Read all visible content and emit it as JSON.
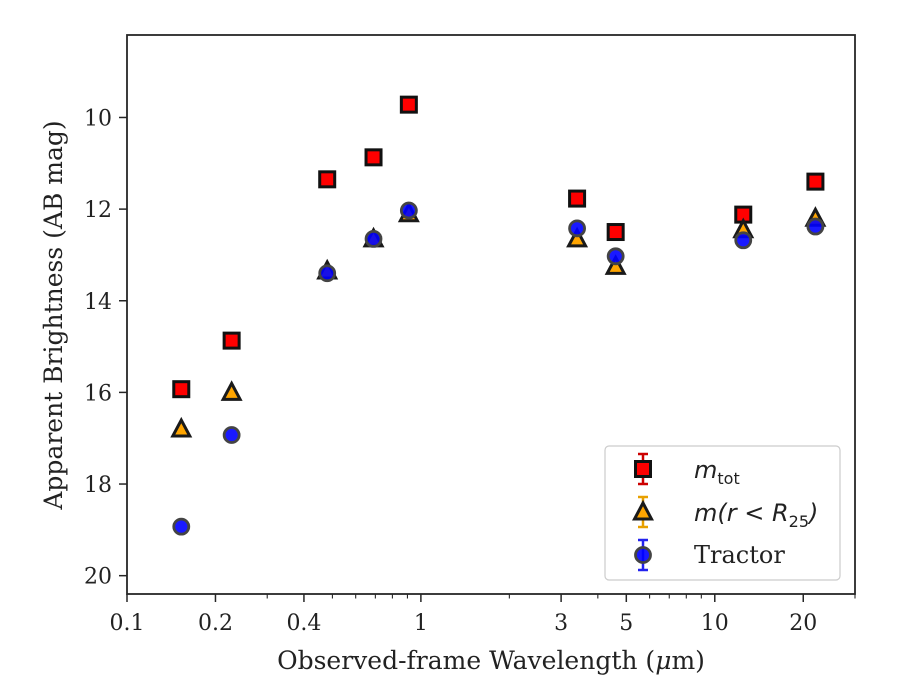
{
  "chart_data": {
    "type": "scatter",
    "xscale": "log",
    "yaxis_inverted": true,
    "xlim": [
      0.1,
      30
    ],
    "ylim": [
      20.4,
      8.2
    ],
    "xlabel_main": "Observed-frame Wavelength (",
    "xlabel_mu": "μ",
    "xlabel_tail": "m)",
    "ylabel": "Apparent Brightness (AB mag)",
    "xticks": [
      {
        "value": 0.1,
        "label": "0.1"
      },
      {
        "value": 0.2,
        "label": "0.2"
      },
      {
        "value": 0.4,
        "label": "0.4"
      },
      {
        "value": 1,
        "label": "1"
      },
      {
        "value": 3,
        "label": "3"
      },
      {
        "value": 5,
        "label": "5"
      },
      {
        "value": 10,
        "label": "10"
      },
      {
        "value": 20,
        "label": "20"
      }
    ],
    "yticks": [
      {
        "value": 10,
        "label": "10"
      },
      {
        "value": 12,
        "label": "12"
      },
      {
        "value": 14,
        "label": "14"
      },
      {
        "value": 16,
        "label": "16"
      },
      {
        "value": 18,
        "label": "18"
      },
      {
        "value": 20,
        "label": "20"
      }
    ],
    "series": [
      {
        "key": "mtot",
        "legend_main": "m",
        "legend_sub": "tot",
        "legend_tail": "",
        "marker": "square",
        "color": "#ff0000",
        "errcolor": "#cc0000",
        "points": [
          {
            "x": 0.153,
            "y": 15.93
          },
          {
            "x": 0.227,
            "y": 14.87
          },
          {
            "x": 0.48,
            "y": 11.35
          },
          {
            "x": 0.69,
            "y": 10.87
          },
          {
            "x": 0.91,
            "y": 9.72
          },
          {
            "x": 3.4,
            "y": 11.77
          },
          {
            "x": 4.6,
            "y": 12.5
          },
          {
            "x": 12.5,
            "y": 12.12
          },
          {
            "x": 22.0,
            "y": 11.4
          }
        ]
      },
      {
        "key": "mr25",
        "legend_main": "m(r < R",
        "legend_sub": "25",
        "legend_tail": ")",
        "marker": "triangle",
        "color": "#ffa500",
        "errcolor": "#e8a000",
        "points": [
          {
            "x": 0.153,
            "y": 16.8
          },
          {
            "x": 0.227,
            "y": 16.0
          },
          {
            "x": 0.48,
            "y": 13.35
          },
          {
            "x": 0.69,
            "y": 12.65
          },
          {
            "x": 0.91,
            "y": 12.1
          },
          {
            "x": 3.4,
            "y": 12.65
          },
          {
            "x": 4.6,
            "y": 13.25
          },
          {
            "x": 12.5,
            "y": 12.45
          },
          {
            "x": 22.0,
            "y": 12.2
          }
        ]
      },
      {
        "key": "tractor",
        "legend_main": "Tractor",
        "legend_sub": "",
        "legend_tail": "",
        "marker": "circle",
        "color": "#0000ff",
        "errcolor": "#2222ee",
        "points": [
          {
            "x": 0.153,
            "y": 18.93
          },
          {
            "x": 0.227,
            "y": 16.93
          },
          {
            "x": 0.48,
            "y": 13.4
          },
          {
            "x": 0.69,
            "y": 12.65
          },
          {
            "x": 0.91,
            "y": 12.03
          },
          {
            "x": 3.4,
            "y": 12.42
          },
          {
            "x": 4.6,
            "y": 13.03
          },
          {
            "x": 12.5,
            "y": 12.68
          },
          {
            "x": 22.0,
            "y": 12.38
          }
        ]
      }
    ],
    "legend_position": "lower-right"
  }
}
